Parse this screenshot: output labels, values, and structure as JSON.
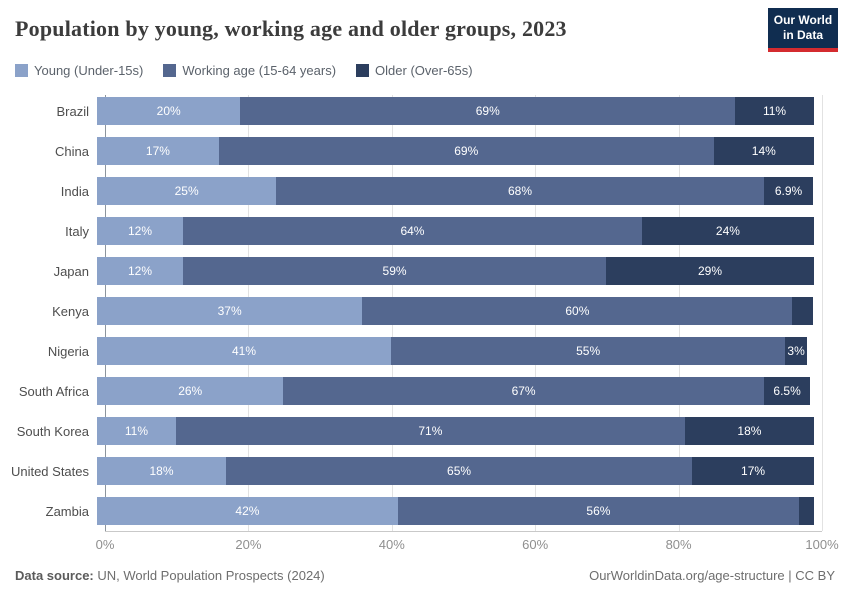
{
  "header": {
    "title": "Population by young, working age and older groups, 2023",
    "logo": {
      "line1": "Our World",
      "line2": "in Data",
      "bg_color": "#102d50",
      "accent_color": "#d42b2f"
    }
  },
  "legend": [
    {
      "label": "Young (Under-15s)",
      "color": "#8ba2c9"
    },
    {
      "label": "Working age (15-64 years)",
      "color": "#54678f"
    },
    {
      "label": "Older (Over-65s)",
      "color": "#2c3e5e"
    }
  ],
  "chart_data": {
    "type": "bar",
    "variant": "horizontal-stacked",
    "title": "Population by young, working age and older groups, 2023",
    "categories": [
      "Brazil",
      "China",
      "India",
      "Italy",
      "Japan",
      "Kenya",
      "Nigeria",
      "South Africa",
      "South Korea",
      "United States",
      "Zambia"
    ],
    "series": [
      {
        "name": "Young (Under-15s)",
        "color": "#8ba2c9",
        "values": [
          20,
          17,
          25,
          12,
          12,
          37,
          41,
          26,
          11,
          18,
          42
        ],
        "labels": [
          "20%",
          "17%",
          "25%",
          "12%",
          "12%",
          "37%",
          "41%",
          "26%",
          "11%",
          "18%",
          "42%"
        ]
      },
      {
        "name": "Working age (15-64 years)",
        "color": "#54678f",
        "values": [
          69,
          69,
          68,
          64,
          59,
          60,
          55,
          67,
          71,
          65,
          56
        ],
        "labels": [
          "69%",
          "69%",
          "68%",
          "64%",
          "59%",
          "60%",
          "55%",
          "67%",
          "71%",
          "65%",
          "56%"
        ]
      },
      {
        "name": "Older (Over-65s)",
        "color": "#2c3e5e",
        "values": [
          11,
          14,
          6.9,
          24,
          29,
          2.9,
          3,
          6.5,
          18,
          17,
          2.1
        ],
        "labels": [
          "11%",
          "14%",
          "6.9%",
          "24%",
          "29%",
          "",
          "3%",
          "6.5%",
          "18%",
          "17%",
          ""
        ]
      }
    ],
    "xlim": [
      0,
      100
    ],
    "xticks": [
      0,
      20,
      40,
      60,
      80,
      100
    ],
    "xtick_labels": [
      "0%",
      "20%",
      "40%",
      "60%",
      "80%",
      "100%"
    ],
    "grid": "vertical",
    "legend_position": "top"
  },
  "footer": {
    "source_label": "Data source:",
    "source_text": " UN, World Population Prospects (2024)",
    "right_text": "OurWorldinData.org/age-structure | CC BY"
  }
}
